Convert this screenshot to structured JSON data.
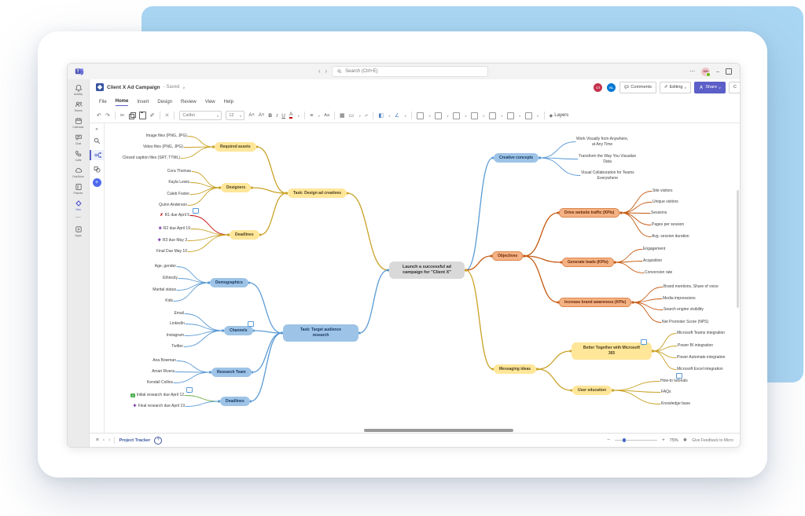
{
  "colors": {
    "accent": "#5b5fc7",
    "blue_line": "#5b9bd5",
    "blue_fill": "#9dc3e6",
    "gold_line": "#c9a227",
    "gold_fill": "#ffe699",
    "orange_line": "#c55a11",
    "orange_fill": "#f4b183",
    "red_line": "#c00000",
    "green_line": "#70ad47",
    "purple_icon": "#7030a0",
    "center_fill": "#d9d9d9",
    "backdrop": "#a9d6f3"
  },
  "glyphs": {
    "more": "⋯",
    "back": "‹",
    "forward": "›",
    "undo": "↶",
    "redo": "↷",
    "cut": "✂",
    "painter": "✐",
    "delete": "✕",
    "chevron": "∨",
    "bold": "B",
    "italic": "I",
    "underline": "U",
    "fontcolor": "A",
    "grow": "A˄",
    "shrink": "A˅",
    "align": "≡",
    "effects": "Aa",
    "image": "▦",
    "shape": "▭",
    "connector": "⌐",
    "fill": "◧",
    "linecolor": "∠",
    "layers_icon": "◈",
    "burger": "≡",
    "prev": "‹",
    "next": "›",
    "add_page": "+",
    "minus": "−",
    "plus": "+",
    "fit": "❖",
    "fail": "✗",
    "add": "✚",
    "done": "✓",
    "minimize": "–"
  },
  "titlebar": {
    "search_placeholder": "Search (Ctrl+E)",
    "avatar_initials": "MM"
  },
  "rail": {
    "items": [
      {
        "icon": "bell-icon",
        "label": "Activity"
      },
      {
        "icon": "teams-icon",
        "label": "Teams"
      },
      {
        "icon": "calendar-icon",
        "label": "Calendar"
      },
      {
        "icon": "chat-icon",
        "label": "Chat"
      },
      {
        "icon": "phone-icon",
        "label": "Calls"
      },
      {
        "icon": "cloud-icon",
        "label": "OneDrive"
      },
      {
        "icon": "planner-icon",
        "label": "Planner"
      },
      {
        "icon": "visio-icon",
        "label": "Visio"
      },
      {
        "icon": "more-icon",
        "label": ""
      },
      {
        "icon": "apps-icon",
        "label": "Apps"
      }
    ]
  },
  "doc": {
    "title": "Client X Ad Campaign",
    "saved": "- Saved"
  },
  "menus": [
    "File",
    "Home",
    "Insert",
    "Design",
    "Review",
    "View",
    "Help"
  ],
  "collab": {
    "avatars": [
      {
        "initials": "CT"
      },
      {
        "initials": "KL"
      }
    ],
    "comments": "Comments",
    "editing": "Editing",
    "share": "Share",
    "clipped": "C"
  },
  "ribbon": {
    "font": "Calibri",
    "size": "12",
    "layers": "Layers"
  },
  "pagebar": {
    "page": "Project Tracker",
    "zoom": "75%",
    "feedback": "Give Feedback to Micro"
  },
  "mindmap": {
    "center": "Launch a successful ad\ncampaign for \"Client X\"",
    "design": {
      "task": "Task: Design ad creatives",
      "assets": {
        "label": "Required assets",
        "leaves": [
          "Image files (PNG, JPG)",
          "Video files (PNG, JPG)",
          "Closed caption files (SRT, TTML)"
        ]
      },
      "designers": {
        "label": "Designers",
        "leaves": [
          "Cora Thomas",
          "Kayla Lewis",
          "Caleb Foster",
          "Quinn Anderson"
        ]
      },
      "deadlines": {
        "label": "Deadlines",
        "leaves": [
          "R1 due April 5",
          "R2 due April 19",
          "R3 due May 3",
          "Final Due May 10"
        ]
      }
    },
    "research": {
      "task": "Task: Target audience\nresearch",
      "demographics": {
        "label": "Demographics",
        "leaves": [
          "Age, gender",
          "Ethnicity",
          "Marital status",
          "Kids"
        ]
      },
      "channels": {
        "label": "Channels",
        "leaves": [
          "Email",
          "LinkedIn",
          "Instagram",
          "Twitter"
        ]
      },
      "team": {
        "label": "Research Team",
        "leaves": [
          "Ana Bowman",
          "Amari Rivera",
          "Kendall Collins"
        ]
      },
      "deadlines": {
        "label": "Deadlines",
        "leaves": [
          "Initial research due April 12",
          "Final research due April 19"
        ]
      }
    },
    "creative": {
      "label": "Creative concepts",
      "leaves": [
        "Work Visually from Anywhere,\nat Any Time",
        "Transform the Way You Visualize\nData",
        "Visual Collaboration for Teams\nEverywhere"
      ]
    },
    "objectives": {
      "label": "Objectives",
      "traffic": {
        "label": "Drive website traffic (KPIs)",
        "leaves": [
          "Site visitors",
          "Unique visitors",
          "Sessions",
          "Pages per session",
          "Avg. session duration"
        ]
      },
      "leads": {
        "label": "Generate leads (KPIs)",
        "leaves": [
          "Engagement",
          "Acquisition",
          "Conversion rate"
        ]
      },
      "awareness": {
        "label": "Increase brand awareness (KPIs)",
        "leaves": [
          "Brand mentions, Share of voice",
          "Media impressions",
          "Search engine visibility",
          "Net Promoter Score (NPS)"
        ]
      }
    },
    "messaging": {
      "label": "Messaging ideas",
      "m365": {
        "label": "Better Together with Microsoft\n365",
        "leaves": [
          "Microsoft Teams integration",
          "Power BI integration",
          "Power Automate integration",
          "Microsoft Excel integration"
        ]
      },
      "education": {
        "label": "User education",
        "leaves": [
          "How-to tutorials",
          "FAQs",
          "Knowledge base"
        ]
      }
    }
  }
}
